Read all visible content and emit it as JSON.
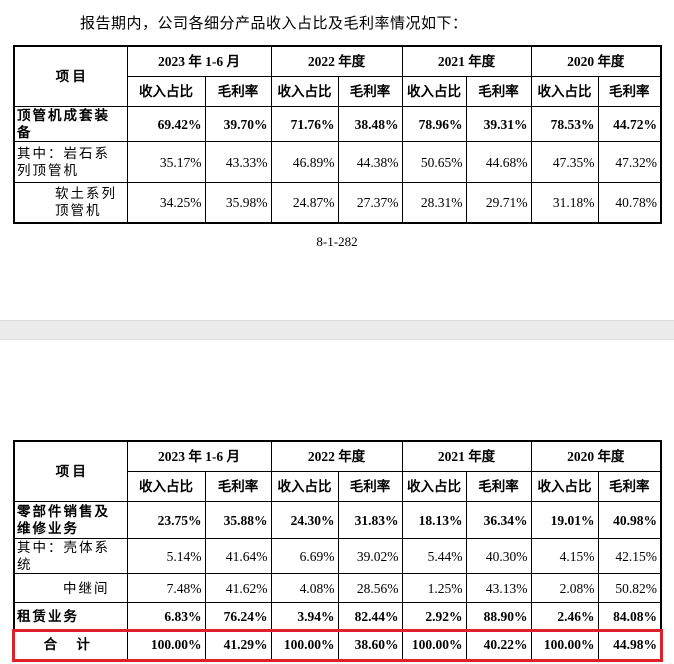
{
  "intro": "报告期内，公司各细分产品收入占比及毛利率情况如下：",
  "table1": {
    "item_header": "项 目",
    "periods": [
      "2023 年 1-6 月",
      "2022 年度",
      "2021 年度",
      "2020 年度"
    ],
    "sub_headers": [
      "收入占比",
      "毛利率",
      "收入占比",
      "毛利率",
      "收入占比",
      "毛利率",
      "收入占比",
      "毛利率"
    ],
    "rows": [
      [
        "顶管机成套装备",
        "69.42%",
        "39.70%",
        "71.76%",
        "38.48%",
        "78.96%",
        "39.31%",
        "78.53%",
        "44.72%"
      ],
      [
        "其中：岩石系列顶管机",
        "35.17%",
        "43.33%",
        "46.89%",
        "44.38%",
        "50.65%",
        "44.68%",
        "47.35%",
        "47.32%"
      ],
      [
        "软土系列顶管机",
        "34.25%",
        "35.98%",
        "24.87%",
        "27.37%",
        "28.31%",
        "29.71%",
        "31.18%",
        "40.78%"
      ]
    ]
  },
  "page_number": "8-1-282",
  "table2": {
    "item_header": "项 目",
    "periods": [
      "2023 年 1-6 月",
      "2022 年度",
      "2021 年度",
      "2020 年度"
    ],
    "sub_headers": [
      "收入占比",
      "毛利率",
      "收入占比",
      "毛利率",
      "收入占比",
      "毛利率",
      "收入占比",
      "毛利率"
    ],
    "rows": [
      [
        "零部件销售及维修业务",
        "23.75%",
        "35.88%",
        "24.30%",
        "31.83%",
        "18.13%",
        "36.34%",
        "19.01%",
        "40.98%"
      ],
      [
        "其中：壳体系统",
        "5.14%",
        "41.64%",
        "6.69%",
        "39.02%",
        "5.44%",
        "40.30%",
        "4.15%",
        "42.15%"
      ],
      [
        "中继间",
        "7.48%",
        "41.62%",
        "4.08%",
        "28.56%",
        "1.25%",
        "43.13%",
        "2.08%",
        "50.82%"
      ],
      [
        "租赁业务",
        "6.83%",
        "76.24%",
        "3.94%",
        "82.44%",
        "2.92%",
        "88.90%",
        "2.46%",
        "84.08%"
      ],
      [
        "合 计",
        "100.00%",
        "41.29%",
        "100.00%",
        "38.60%",
        "100.00%",
        "40.22%",
        "100.00%",
        "44.98%"
      ]
    ]
  }
}
